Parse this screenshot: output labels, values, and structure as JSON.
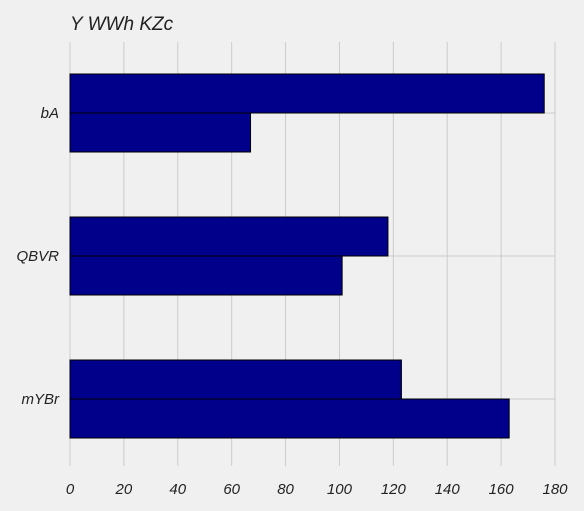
{
  "chart_data": {
    "type": "bar",
    "orientation": "horizontal",
    "title": "Y WWh  KZc",
    "xlabel": "",
    "ylabel": "",
    "categories": [
      "bA",
      "QBVR",
      "mYBr"
    ],
    "series": [
      {
        "values": [
          176,
          118,
          123
        ]
      },
      {
        "values": [
          67,
          101,
          163
        ]
      }
    ],
    "xlim": [
      0,
      180
    ],
    "x_ticks": [
      0,
      20,
      40,
      60,
      80,
      100,
      120,
      140,
      160,
      180
    ],
    "grid": true,
    "legend": "none",
    "colors": {
      "bar": "#00008b",
      "background": "#f0f0f0",
      "grid": "#cbcbcb",
      "edge": "#000000"
    }
  }
}
